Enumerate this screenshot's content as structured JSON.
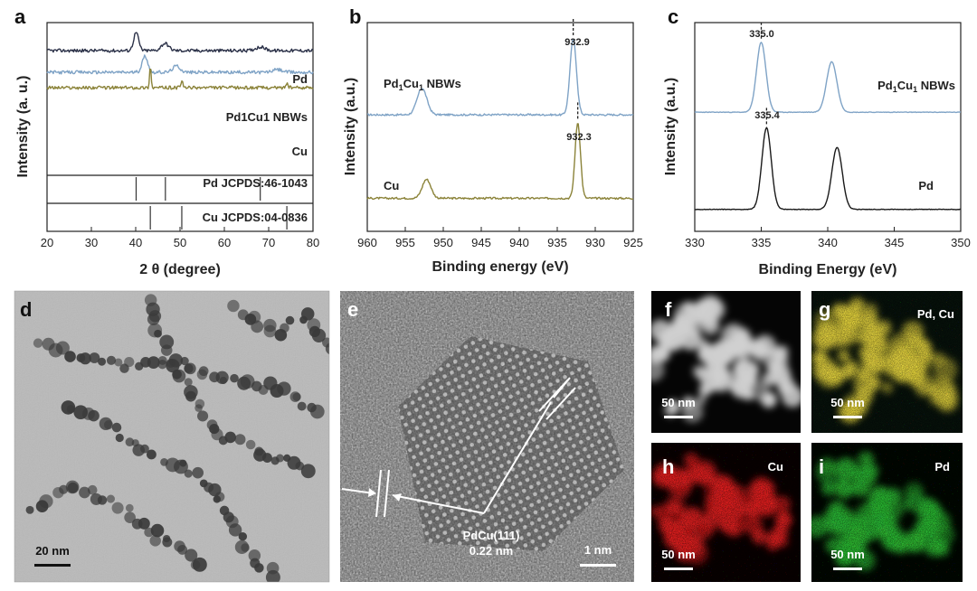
{
  "panel_labels": {
    "a": "a",
    "b": "b",
    "c": "c",
    "d": "d",
    "e": "e",
    "f": "f",
    "g": "g",
    "h": "h",
    "i": "i"
  },
  "colors": {
    "pd": "#2b3148",
    "pdcu": "#7fa3c6",
    "cu": "#8b8339",
    "black": "#1a1a1a",
    "red": "#e02020",
    "green": "#29c030",
    "yellow": "#d8c83a"
  },
  "chart_data": [
    {
      "type": "line",
      "panel": "a",
      "xlabel": "2 θ (degree)",
      "ylabel": "Intensity (a. u.)",
      "xlim": [
        20,
        80
      ],
      "xticks": [
        20,
        30,
        40,
        50,
        60,
        70,
        80
      ],
      "series": [
        {
          "name": "Pd",
          "color": "#2b3148",
          "offset": 3.1,
          "peaks": [
            [
              40.1,
              1.0,
              0.8
            ],
            [
              46.6,
              0.4,
              1.2
            ],
            [
              68.1,
              0.2,
              1.5
            ]
          ]
        },
        {
          "name": "Pd1Cu1 NBWs",
          "color": "#7fa3c6",
          "offset": 1.9,
          "peaks": [
            [
              42.1,
              0.9,
              0.9
            ],
            [
              49.2,
              0.35,
              1.2
            ],
            [
              72.0,
              0.15,
              1.5
            ]
          ]
        },
        {
          "name": "Cu",
          "color": "#8b8339",
          "offset": 1.05,
          "peaks": [
            [
              43.3,
              1.2,
              0.25
            ],
            [
              50.4,
              0.4,
              0.3
            ],
            [
              74.1,
              0.25,
              0.35
            ]
          ]
        }
      ],
      "reference_patterns": [
        {
          "label": "Pd JCPDS:46-1043",
          "lines": [
            40.1,
            46.7,
            68.1
          ]
        },
        {
          "label": "Cu JCPDS:04-0836",
          "lines": [
            43.3,
            50.4,
            74.1
          ]
        }
      ]
    },
    {
      "type": "line",
      "panel": "b",
      "xlabel": "Binding energy (eV)",
      "ylabel": "Intensity (a.u.)",
      "xlim": [
        960,
        925
      ],
      "xticks": [
        960,
        955,
        950,
        945,
        940,
        935,
        930,
        925
      ],
      "series": [
        {
          "name": "Pd1Cu1 NBWs",
          "color": "#7fa3c6",
          "offset": 2.5,
          "peak_label": "932.9",
          "peaks": [
            [
              932.9,
              2.0,
              0.6
            ],
            [
              952.8,
              0.7,
              0.9
            ]
          ]
        },
        {
          "name": "Cu",
          "color": "#8b8339",
          "offset": 0.3,
          "peak_label": "932.3",
          "peaks": [
            [
              932.3,
              2.0,
              0.5
            ],
            [
              952.2,
              0.5,
              0.8
            ]
          ]
        }
      ]
    },
    {
      "type": "line",
      "panel": "c",
      "xlabel": "Binding Energy (eV)",
      "ylabel": "Intensity (a.u.)",
      "xlim": [
        330,
        350
      ],
      "xticks": [
        330,
        335,
        340,
        345,
        350
      ],
      "series": [
        {
          "name": "Pd1Cu1 NBWs",
          "color": "#7fa3c6",
          "offset": 2.6,
          "peak_label": "335.0",
          "peaks": [
            [
              335.0,
              1.8,
              0.5
            ],
            [
              340.3,
              1.3,
              0.55
            ]
          ]
        },
        {
          "name": "Pd",
          "color": "#1a1a1a",
          "offset": 0.1,
          "peak_label": "335.4",
          "peaks": [
            [
              335.4,
              2.1,
              0.5
            ],
            [
              340.7,
              1.6,
              0.55
            ]
          ]
        }
      ]
    }
  ],
  "images": {
    "d": {
      "scale_bar": "20 nm"
    },
    "e": {
      "scale_bar": "1 nm",
      "annotation_line1": "PdCu(111)",
      "annotation_line2": "0.22 nm"
    },
    "f": {
      "scale_bar": "50 nm"
    },
    "g": {
      "scale_bar": "50 nm",
      "element": "Pd, Cu"
    },
    "h": {
      "scale_bar": "50 nm",
      "element": "Cu"
    },
    "i": {
      "scale_bar": "50 nm",
      "element": "Pd"
    }
  }
}
